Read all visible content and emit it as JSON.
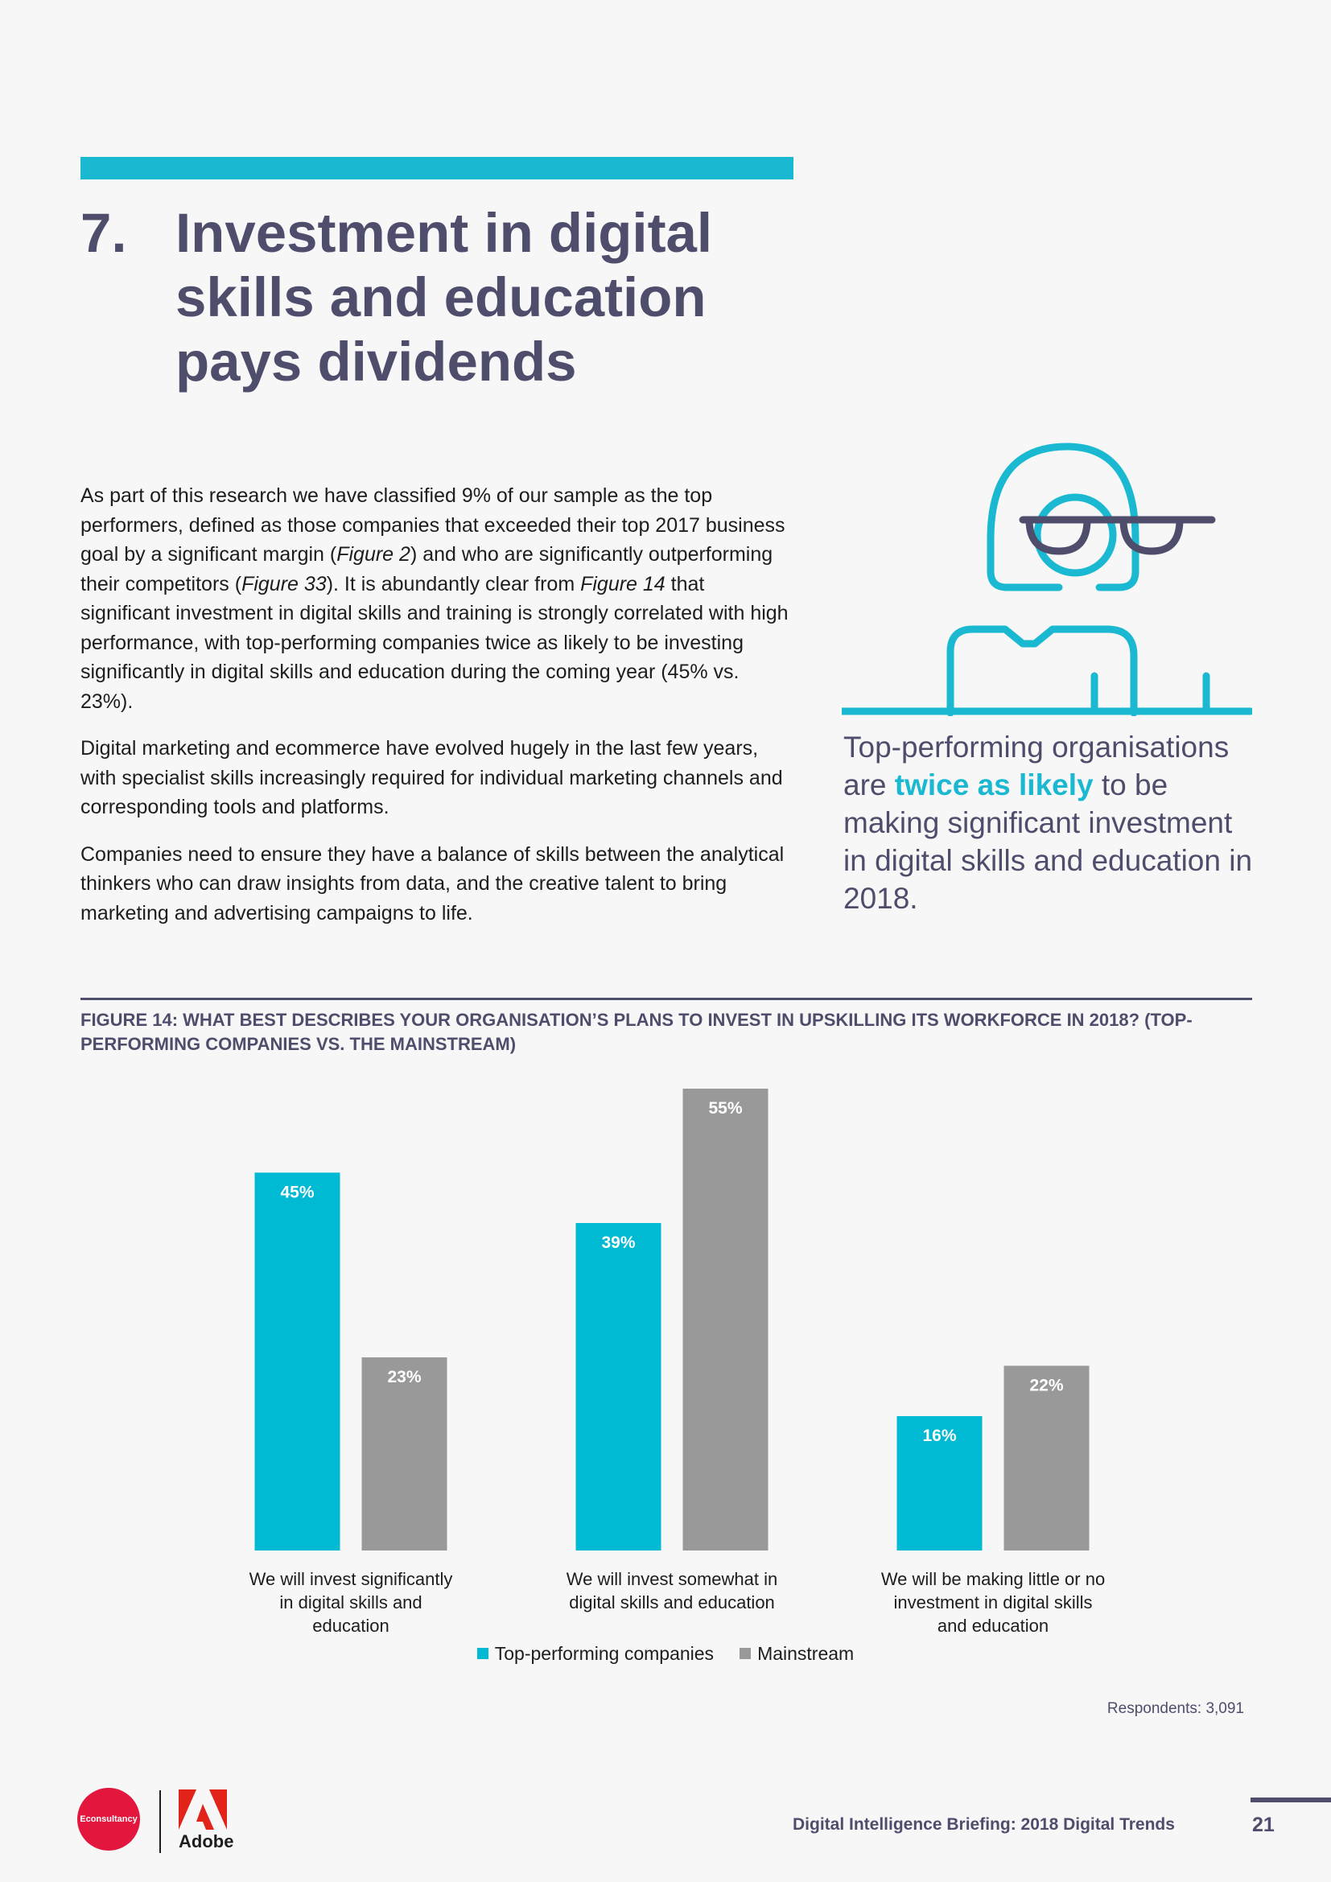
{
  "section": {
    "number": "7.",
    "title": "Investment in digital skills and education pays dividends"
  },
  "body": {
    "p1": {
      "a": "As part of this research we have classified 9% of our sample as the top performers, defined as those companies that exceeded their top 2017 business goal by a significant margin (",
      "ref1": "Figure 2",
      "b": ") and who are significantly outperforming their competitors (",
      "ref2": "Figure 33",
      "c": "). It is abundantly clear from ",
      "ref3": "Figure 14",
      "d": " that significant investment in digital skills and training is strongly correlated with high performance, with top-performing companies twice as likely to be investing significantly in digital skills and education during the coming year (45% vs. 23%)."
    },
    "p2": "Digital marketing and ecommerce have evolved hugely in the last few years, with specialist skills increasingly required for individual marketing channels and corresponding tools and platforms.",
    "p3": "Companies need to ensure they have a balance of skills between the analytical thinkers who can draw insights from data, and the creative talent to bring marketing and advertising campaigns to life."
  },
  "callout": {
    "pre": "Top-performing organisations are ",
    "highlight": "twice as likely",
    "post": " to be making significant investment in digital skills and education in 2018."
  },
  "figure": {
    "title": "FIGURE 14: WHAT BEST DESCRIBES YOUR ORGANISATION’S PLANS TO INVEST IN UPSKILLING ITS WORKFORCE IN 2018? (TOP-PERFORMING COMPANIES VS. THE MAINSTREAM)",
    "respondents": "Respondents: 3,091"
  },
  "chart_data": {
    "type": "bar",
    "title": "FIGURE 14: WHAT BEST DESCRIBES YOUR ORGANISATION’S PLANS TO INVEST IN UPSKILLING ITS WORKFORCE IN 2018? (TOP-PERFORMING COMPANIES VS. THE MAINSTREAM)",
    "categories": [
      "We will invest significantly in digital skills and education",
      "We will invest somewhat in digital skills and education",
      "We will be making little or no investment in digital skills and education"
    ],
    "series": [
      {
        "name": "Top-performing companies",
        "values": [
          45,
          39,
          16
        ],
        "color": "#00b9d3"
      },
      {
        "name": "Mainstream",
        "values": [
          23,
          55,
          22
        ],
        "color": "#999999"
      }
    ],
    "ylim": [
      0,
      55
    ],
    "value_suffix": "%",
    "xlabel": "",
    "ylabel": "",
    "legend": "bottom-center",
    "grid": false
  },
  "footer": {
    "logo_econsultancy": "Econsultancy",
    "logo_adobe": "Adobe",
    "title": "Digital Intelligence Briefing: 2018 Digital Trends",
    "page": "21"
  },
  "colors": {
    "accent": "#1ab9d1",
    "heading": "#4e4d6c",
    "top_series": "#00b9d3",
    "mainstream_series": "#999999",
    "econsultancy_red": "#e3173e",
    "adobe_red": "#e2231a"
  }
}
